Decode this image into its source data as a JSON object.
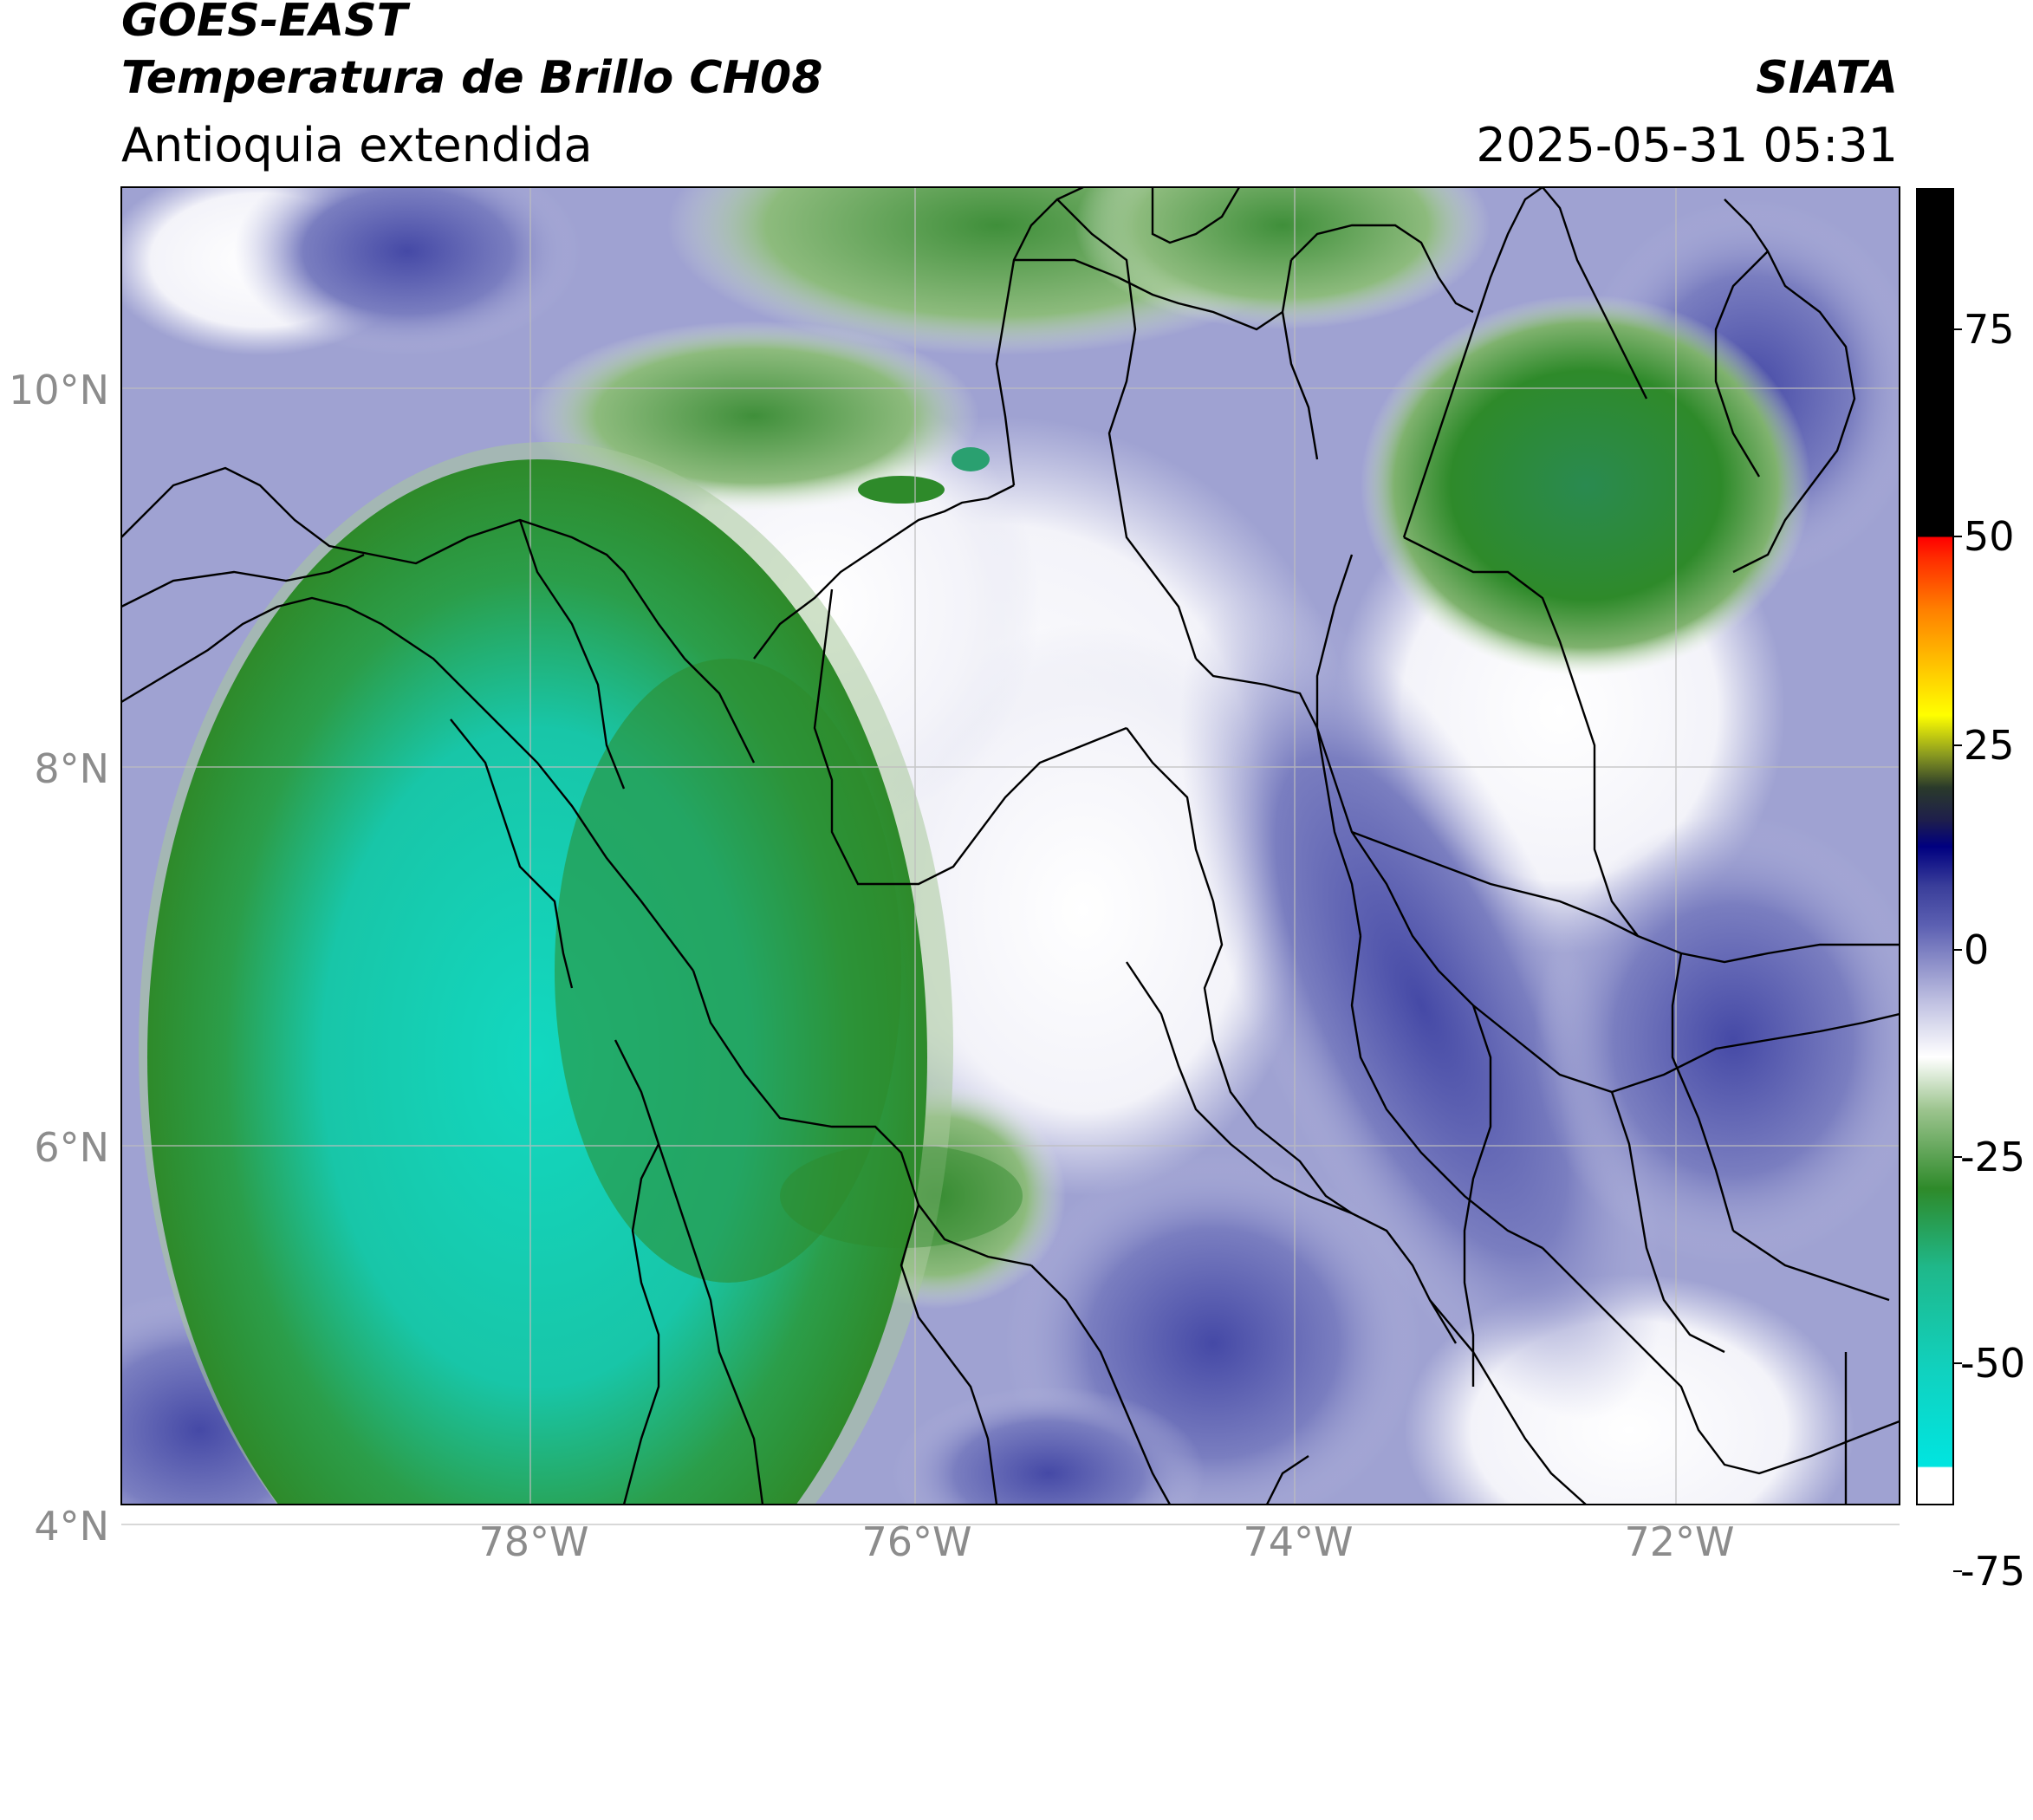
{
  "header": {
    "satellite": "GOES-EAST",
    "product": "Temperatura de Brillo CH08",
    "region": "Antioquia extendida",
    "agency": "SIATA",
    "datetime": "2025-05-31 05:31"
  },
  "map": {
    "lat_ticks": [
      "10°N",
      "8°N",
      "6°N",
      "4°N"
    ],
    "lon_ticks": [
      "78°W",
      "76°W",
      "74°W",
      "72°W"
    ],
    "lon_range": [
      -80.2,
      -70.8
    ],
    "lat_range": [
      2.8,
      11.1
    ]
  },
  "colorbar": {
    "tick_labels": [
      "75",
      "50",
      "25",
      "0",
      "-25",
      "-50",
      "-75"
    ],
    "colors": {
      "cyan": "#00e5d8",
      "green": "#2e8a2a",
      "white": "#ffffff",
      "blue": "#4a4ea8",
      "navy": "#000080",
      "yellow": "#ffff00",
      "orange": "#ff8c00",
      "red": "#ff0000",
      "black": "#000000"
    }
  }
}
